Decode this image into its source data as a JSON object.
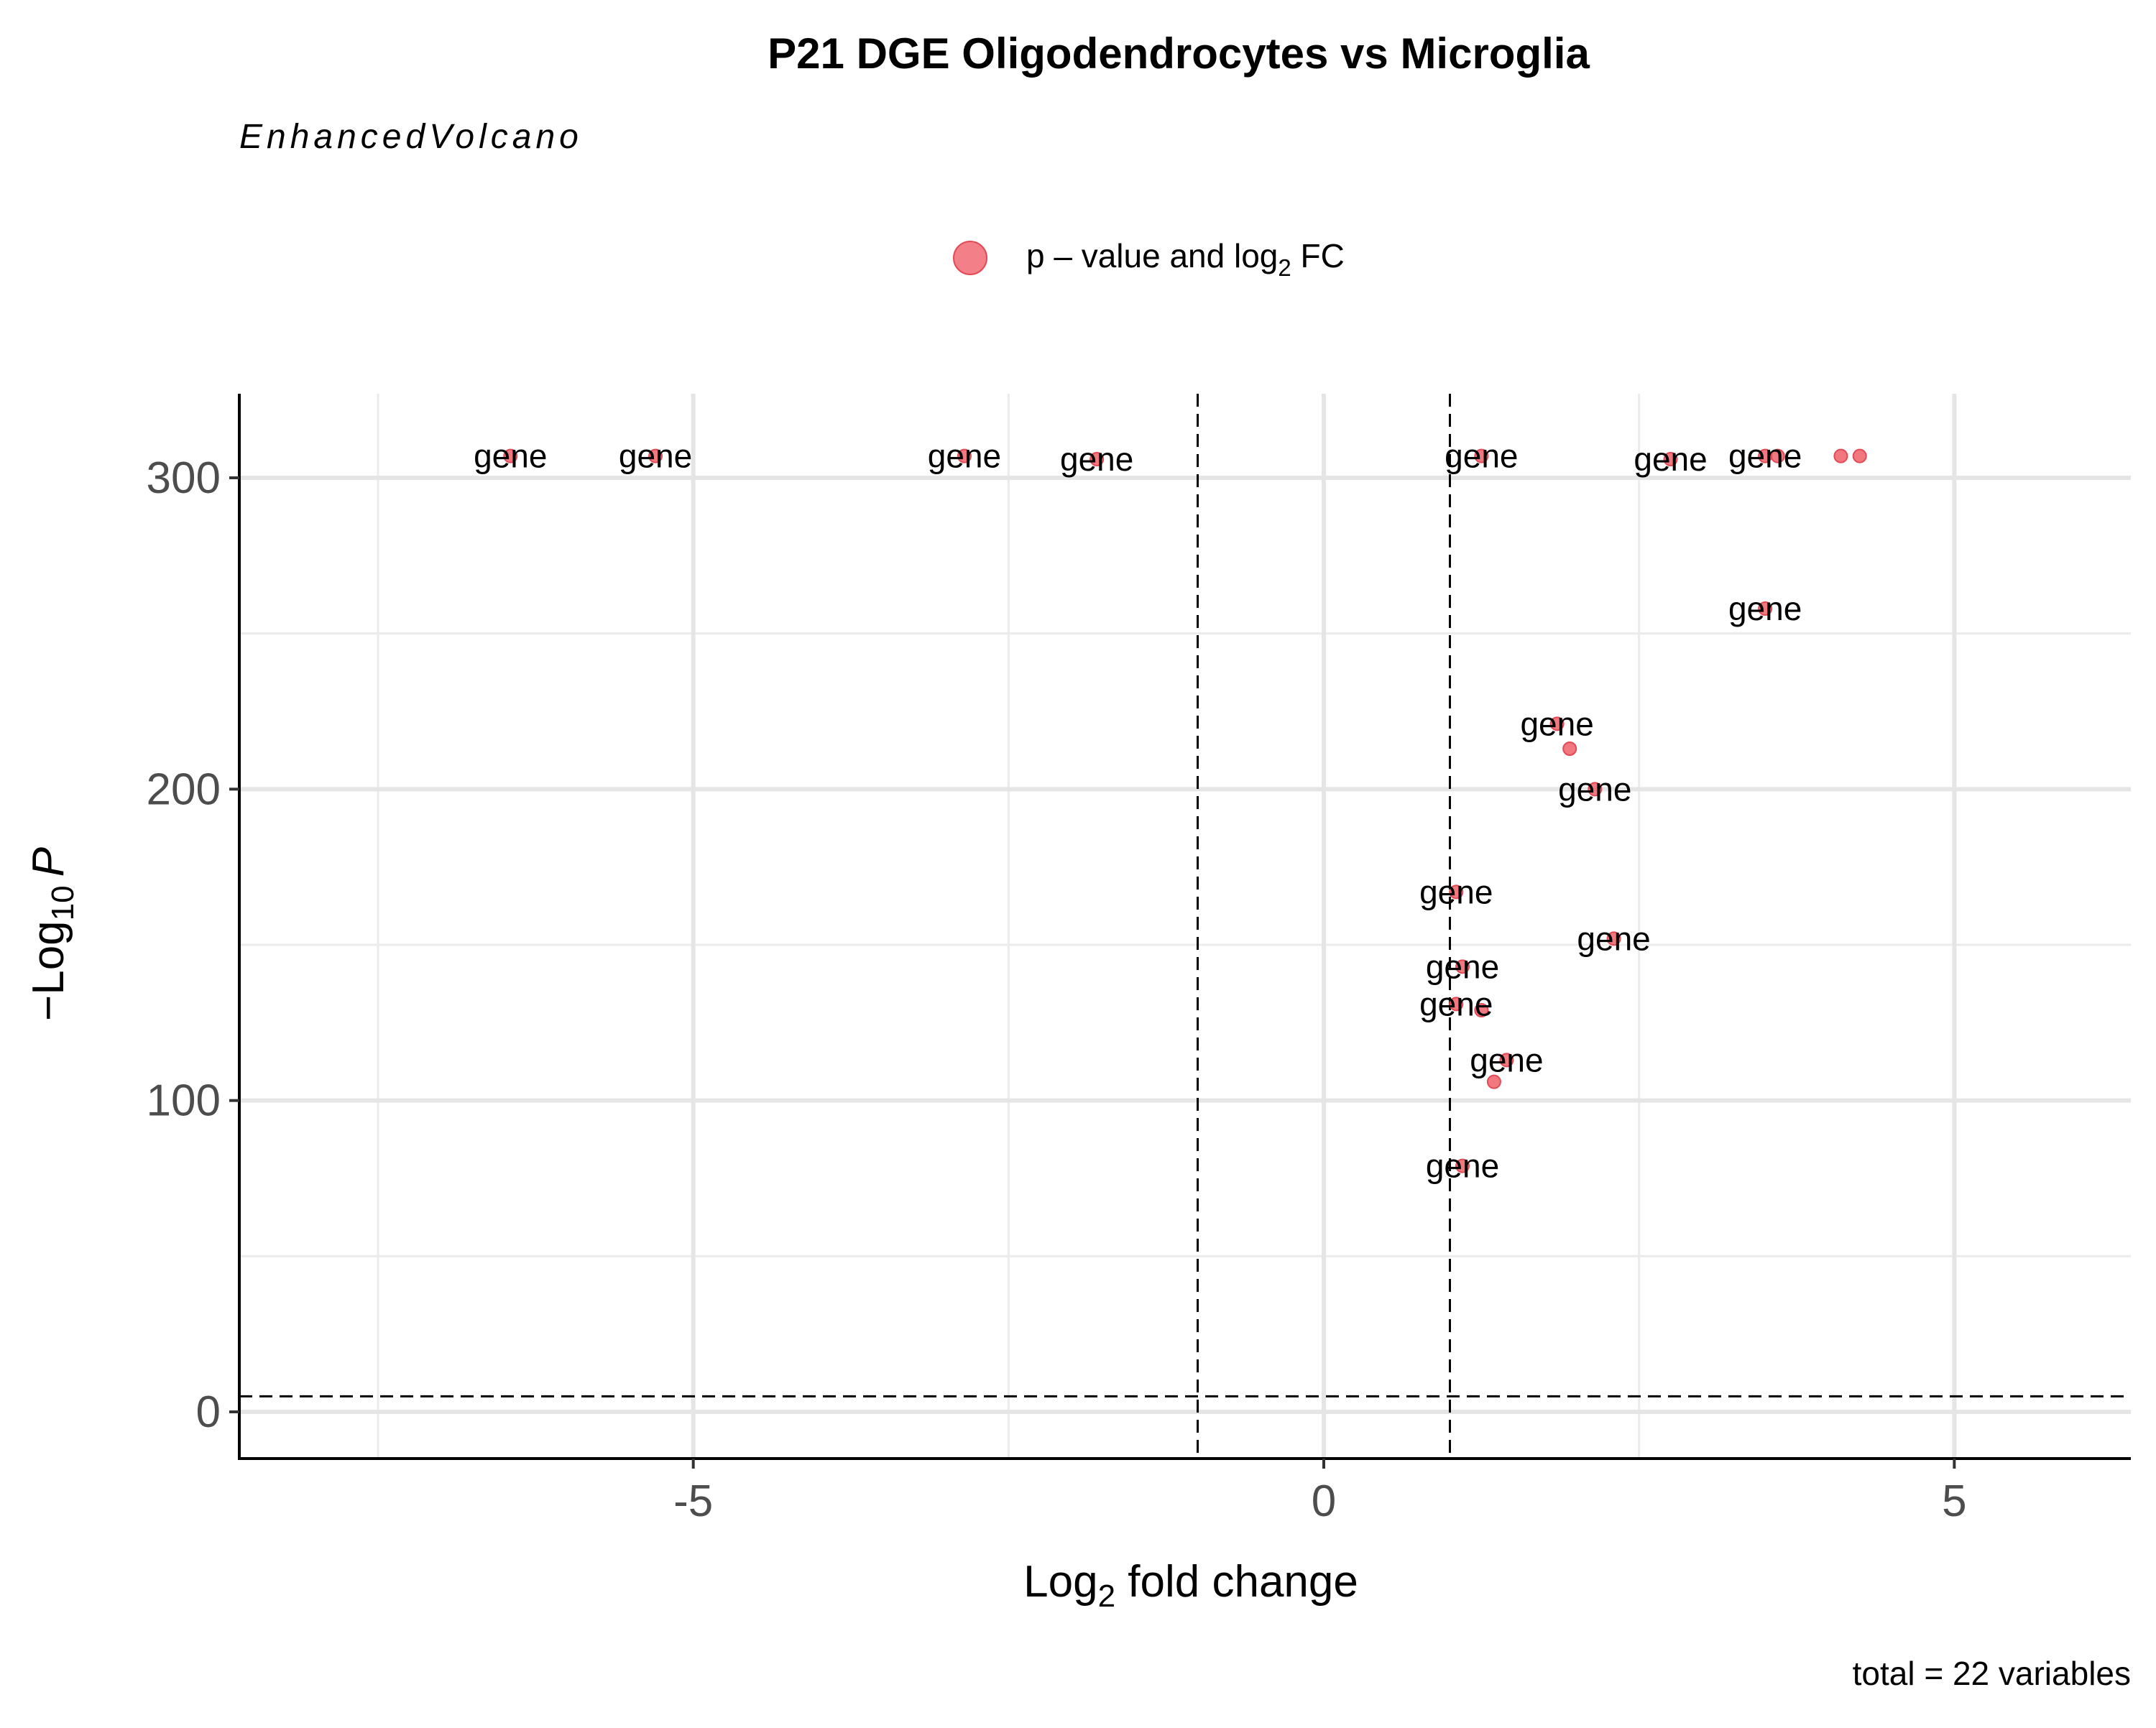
{
  "chart_data": {
    "type": "scatter",
    "title": "P21 DGE Oligodendrocytes vs Microglia",
    "subtitle": "EnhancedVolcano",
    "xlabel": {
      "main": "Log",
      "sub": "2",
      "rest": " fold change"
    },
    "ylabel": {
      "pre": "−Log",
      "sub": "10",
      "italic": "P"
    },
    "caption": "total = 22 variables",
    "legend": {
      "position": "top",
      "label": {
        "pre": "p – value and log",
        "sub": "2",
        "post": " FC"
      },
      "color": "#F0606A"
    },
    "xlim": [
      -8.6,
      6.4
    ],
    "ylim": [
      -15,
      327
    ],
    "x_ticks": [
      -5,
      0,
      5
    ],
    "x_tick_labels": [
      "-5",
      "0",
      "5"
    ],
    "y_ticks": [
      0,
      100,
      200,
      300
    ],
    "y_tick_labels": [
      "0",
      "100",
      "200",
      "300"
    ],
    "grid": true,
    "cutoffs": {
      "log2fc": [
        -1,
        1
      ],
      "neg_log10_p": 5
    },
    "point_label": "gene",
    "points": [
      {
        "x": -6.45,
        "y": 307,
        "label": "gene"
      },
      {
        "x": -5.3,
        "y": 307,
        "label": "gene"
      },
      {
        "x": -2.85,
        "y": 307,
        "label": "gene"
      },
      {
        "x": -1.8,
        "y": 306,
        "label": "gene"
      },
      {
        "x": 1.25,
        "y": 307,
        "label": "gene"
      },
      {
        "x": 2.75,
        "y": 306,
        "label": "gene"
      },
      {
        "x": 3.5,
        "y": 307,
        "label": "gene"
      },
      {
        "x": 3.6,
        "y": 307
      },
      {
        "x": 4.1,
        "y": 307
      },
      {
        "x": 4.25,
        "y": 307
      },
      {
        "x": 3.5,
        "y": 258,
        "label": "gene"
      },
      {
        "x": 1.85,
        "y": 221,
        "label": "gene"
      },
      {
        "x": 1.95,
        "y": 213
      },
      {
        "x": 2.15,
        "y": 200,
        "label": "gene"
      },
      {
        "x": 1.05,
        "y": 167,
        "label": "gene"
      },
      {
        "x": 2.3,
        "y": 152,
        "label": "gene"
      },
      {
        "x": 1.1,
        "y": 143,
        "label": "gene"
      },
      {
        "x": 1.05,
        "y": 131,
        "label": "gene"
      },
      {
        "x": 1.25,
        "y": 129
      },
      {
        "x": 1.45,
        "y": 113,
        "label": "gene"
      },
      {
        "x": 1.35,
        "y": 106
      },
      {
        "x": 1.1,
        "y": 79,
        "label": "gene"
      }
    ]
  }
}
